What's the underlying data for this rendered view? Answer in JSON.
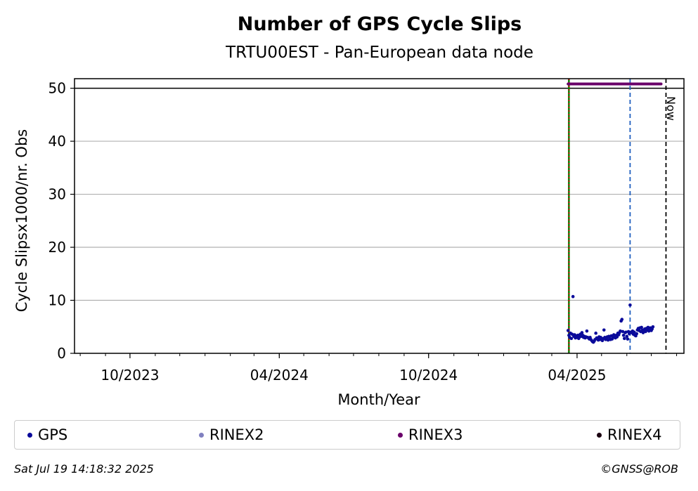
{
  "chart_data": {
    "type": "scatter",
    "title": "Number of GPS Cycle Slips",
    "subtitle": "TRTU00EST - Pan-European data node",
    "xlabel": "Month/Year",
    "ylabel": "Cycle Slipsx1000/nr. Obs",
    "xlim": [
      "2023-07-25",
      "2025-08-10"
    ],
    "ylim": [
      0,
      51.8
    ],
    "yticks": [
      0,
      10,
      20,
      30,
      40,
      50
    ],
    "xticks": [
      {
        "date": "2023-10-01",
        "label": "10/2023"
      },
      {
        "date": "2024-04-01",
        "label": "04/2024"
      },
      {
        "date": "2024-10-01",
        "label": "10/2024"
      },
      {
        "date": "2025-04-01",
        "label": "04/2025"
      }
    ],
    "grid": "horizontal",
    "reference_lines": [
      {
        "type": "horizontal",
        "y": 50,
        "color": "#000000",
        "style": "solid"
      },
      {
        "type": "vertical",
        "date": "2025-03-22",
        "color": "#008000",
        "style": "solid"
      },
      {
        "type": "vertical",
        "date": "2025-03-22",
        "color": "#cc0000",
        "style": "dotted"
      },
      {
        "type": "vertical",
        "date": "2025-06-05",
        "color": "#1f5fbf",
        "style": "dashed"
      },
      {
        "type": "vertical",
        "date": "2025-07-19",
        "color": "#000000",
        "style": "dashed",
        "label": "Now"
      }
    ],
    "series": [
      {
        "name": "GPS",
        "color": "#0a0a9a",
        "points": [
          [
            "2025-03-21",
            4.3
          ],
          [
            "2025-03-22",
            3.4
          ],
          [
            "2025-03-23",
            3.0
          ],
          [
            "2025-03-24",
            3.8
          ],
          [
            "2025-03-25",
            2.8
          ],
          [
            "2025-03-26",
            3.6
          ],
          [
            "2025-03-27",
            10.7
          ],
          [
            "2025-03-28",
            3.2
          ],
          [
            "2025-03-29",
            3.5
          ],
          [
            "2025-03-30",
            2.9
          ],
          [
            "2025-03-31",
            3.3
          ],
          [
            "2025-04-01",
            3.0
          ],
          [
            "2025-04-02",
            3.4
          ],
          [
            "2025-04-03",
            2.8
          ],
          [
            "2025-04-04",
            3.1
          ],
          [
            "2025-04-05",
            3.6
          ],
          [
            "2025-04-06",
            3.2
          ],
          [
            "2025-04-07",
            3.9
          ],
          [
            "2025-04-08",
            3.4
          ],
          [
            "2025-04-09",
            3.0
          ],
          [
            "2025-04-10",
            3.2
          ],
          [
            "2025-04-11",
            2.9
          ],
          [
            "2025-04-12",
            3.1
          ],
          [
            "2025-04-13",
            4.2
          ],
          [
            "2025-04-14",
            3.0
          ],
          [
            "2025-04-15",
            2.9
          ],
          [
            "2025-04-16",
            2.7
          ],
          [
            "2025-04-17",
            3.0
          ],
          [
            "2025-04-18",
            2.6
          ],
          [
            "2025-04-19",
            2.4
          ],
          [
            "2025-04-20",
            2.2
          ],
          [
            "2025-04-21",
            2.1
          ],
          [
            "2025-04-22",
            2.3
          ],
          [
            "2025-04-23",
            2.6
          ],
          [
            "2025-04-24",
            3.8
          ],
          [
            "2025-04-25",
            2.9
          ],
          [
            "2025-04-26",
            2.7
          ],
          [
            "2025-04-27",
            2.5
          ],
          [
            "2025-04-28",
            3.1
          ],
          [
            "2025-04-29",
            2.6
          ],
          [
            "2025-04-30",
            3.0
          ],
          [
            "2025-05-01",
            2.7
          ],
          [
            "2025-05-02",
            2.4
          ],
          [
            "2025-05-03",
            2.8
          ],
          [
            "2025-05-04",
            4.4
          ],
          [
            "2025-05-05",
            3.0
          ],
          [
            "2025-05-06",
            2.6
          ],
          [
            "2025-05-07",
            2.9
          ],
          [
            "2025-05-08",
            3.1
          ],
          [
            "2025-05-09",
            2.5
          ],
          [
            "2025-05-10",
            3.2
          ],
          [
            "2025-05-11",
            2.8
          ],
          [
            "2025-05-12",
            2.6
          ],
          [
            "2025-05-13",
            3.3
          ],
          [
            "2025-05-14",
            2.7
          ],
          [
            "2025-05-15",
            3.0
          ],
          [
            "2025-05-16",
            3.5
          ],
          [
            "2025-05-17",
            3.2
          ],
          [
            "2025-05-18",
            2.9
          ],
          [
            "2025-05-19",
            3.4
          ],
          [
            "2025-05-20",
            3.1
          ],
          [
            "2025-05-21",
            3.8
          ],
          [
            "2025-05-22",
            3.5
          ],
          [
            "2025-05-23",
            3.9
          ],
          [
            "2025-05-24",
            4.2
          ],
          [
            "2025-05-25",
            6.1
          ],
          [
            "2025-05-26",
            6.4
          ],
          [
            "2025-05-27",
            4.1
          ],
          [
            "2025-05-28",
            3.4
          ],
          [
            "2025-05-29",
            2.8
          ],
          [
            "2025-05-30",
            3.9
          ],
          [
            "2025-05-31",
            4.0
          ],
          [
            "2025-06-01",
            3.2
          ],
          [
            "2025-06-02",
            2.7
          ],
          [
            "2025-06-03",
            4.1
          ],
          [
            "2025-06-04",
            3.7
          ],
          [
            "2025-06-05",
            9.1
          ],
          [
            "2025-06-06",
            4.0
          ],
          [
            "2025-06-07",
            3.9
          ],
          [
            "2025-06-08",
            4.2
          ],
          [
            "2025-06-09",
            3.6
          ],
          [
            "2025-06-10",
            4.0
          ],
          [
            "2025-06-11",
            3.4
          ],
          [
            "2025-06-12",
            3.3
          ],
          [
            "2025-06-13",
            3.7
          ],
          [
            "2025-06-14",
            4.4
          ],
          [
            "2025-06-15",
            4.7
          ],
          [
            "2025-06-16",
            4.3
          ],
          [
            "2025-06-17",
            4.8
          ],
          [
            "2025-06-18",
            4.1
          ],
          [
            "2025-06-19",
            4.9
          ],
          [
            "2025-06-20",
            4.4
          ],
          [
            "2025-06-21",
            3.9
          ],
          [
            "2025-06-22",
            4.3
          ],
          [
            "2025-06-23",
            4.6
          ],
          [
            "2025-06-24",
            4.1
          ],
          [
            "2025-06-25",
            4.7
          ],
          [
            "2025-06-26",
            4.4
          ],
          [
            "2025-06-27",
            4.9
          ],
          [
            "2025-06-28",
            4.2
          ],
          [
            "2025-06-29",
            4.5
          ],
          [
            "2025-06-30",
            4.8
          ],
          [
            "2025-07-01",
            4.3
          ],
          [
            "2025-07-02",
            4.6
          ],
          [
            "2025-07-03",
            5.0
          ]
        ]
      },
      {
        "name": "RINEX2",
        "color": "#8080c0",
        "points": []
      },
      {
        "name": "RINEX3",
        "color": "#6a006a",
        "constant_value": 50.8,
        "date_range": [
          "2025-03-21",
          "2025-07-13"
        ]
      },
      {
        "name": "RINEX4",
        "color": "#1a0010",
        "points": []
      }
    ],
    "legend_position": "bottom"
  },
  "legend": [
    {
      "label": "GPS",
      "color": "#0a0a9a"
    },
    {
      "label": "RINEX2",
      "color": "#8080c0"
    },
    {
      "label": "RINEX3",
      "color": "#6a006a"
    },
    {
      "label": "RINEX4",
      "color": "#1a0010"
    }
  ],
  "footer": {
    "timestamp": "Sat Jul 19 14:18:32 2025",
    "credit": "©GNSS@ROB"
  },
  "labels": {
    "now": "Now"
  }
}
